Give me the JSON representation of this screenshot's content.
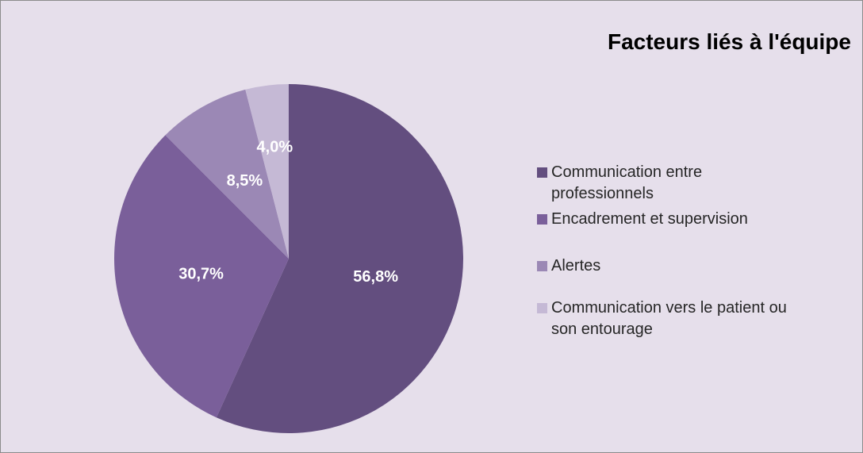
{
  "chart_data": {
    "type": "pie",
    "title": "Facteurs liés à l'équipe",
    "categories": [
      "Communication entre professionnels",
      "Encadrement et supervision",
      "Alertes",
      "Communication vers le patient ou son entourage"
    ],
    "values": [
      56.8,
      30.7,
      8.5,
      4.0
    ],
    "value_labels": [
      "56,8%",
      "30,7%",
      "8,5%",
      "4,0%"
    ],
    "colors": [
      "#634e7f",
      "#7a5f9a",
      "#9b88b5",
      "#c5b9d5"
    ],
    "legend": "right"
  }
}
